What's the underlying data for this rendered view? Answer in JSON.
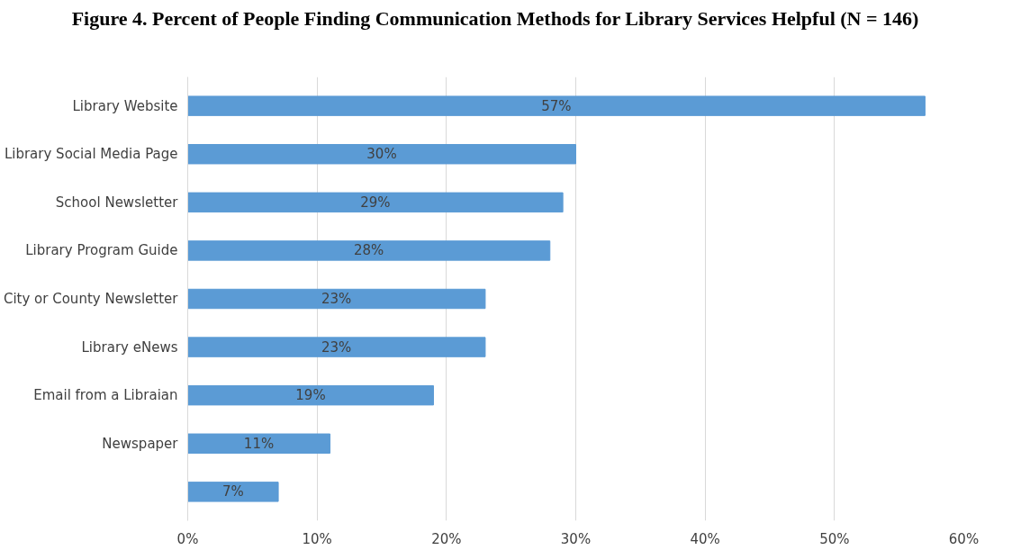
{
  "chart_data": {
    "type": "bar",
    "orientation": "horizontal",
    "title": "Figure 4. Percent of People Finding Communication Methods for Library Services Helpful (N = 146)",
    "categories": [
      "Library Website",
      "Library Social Media Page",
      "School Newsletter",
      "Library Program Guide",
      "City or County Newsletter",
      "Library eNews",
      "Email from a Libraian",
      "Newspaper",
      null
    ],
    "values": [
      57,
      30,
      29,
      28,
      23,
      23,
      19,
      11,
      7
    ],
    "value_labels": [
      "57%",
      "30%",
      "29%",
      "28%",
      "23%",
      "23%",
      "19%",
      "11%",
      "7%"
    ],
    "color": "#5b9bd5",
    "xlim": [
      0,
      60
    ],
    "xticks": [
      {
        "value": 0,
        "label": "0%"
      },
      {
        "value": 10,
        "label": "10%"
      },
      {
        "value": 20,
        "label": "20%"
      },
      {
        "value": 30,
        "label": "30%"
      },
      {
        "value": 40,
        "label": "40%"
      },
      {
        "value": 50,
        "label": "50%"
      },
      {
        "value": 60,
        "label": "60%"
      }
    ],
    "grid": "x"
  }
}
